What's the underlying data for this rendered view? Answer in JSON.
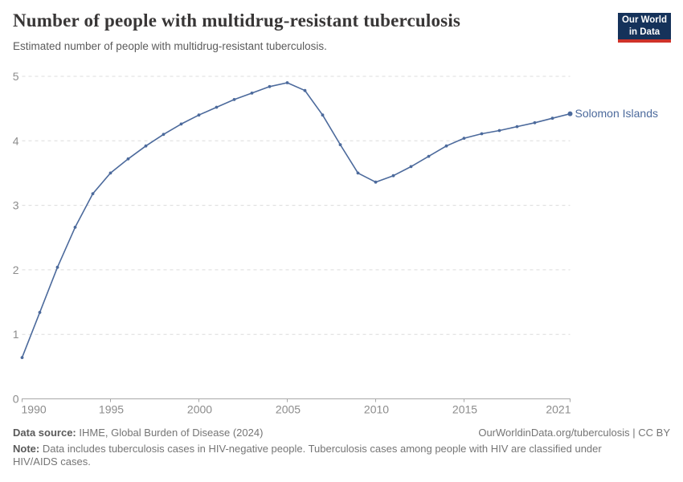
{
  "header": {
    "logo": {
      "line1": "Our World",
      "line2": "in Data",
      "bg_color": "#15325a",
      "bar_color": "#cf3229"
    }
  },
  "chart_data": {
    "type": "line",
    "title": "Number of people with multidrug-resistant tuberculosis",
    "subtitle": "Estimated number of people with multidrug-resistant tuberculosis.",
    "xlabel": "",
    "ylabel": "",
    "xlim": [
      1990,
      2021
    ],
    "ylim": [
      0,
      5
    ],
    "x_ticks": [
      1990,
      1995,
      2000,
      2005,
      2010,
      2015,
      2021
    ],
    "y_ticks": [
      0,
      1,
      2,
      3,
      4,
      5
    ],
    "grid": "horizontal-dashed",
    "legend_position": "label-at-line-end",
    "colors": {
      "line": "#4c6a9c",
      "gridline": "#dcdcdc",
      "axis": "#a8a8a8",
      "tick_label": "#8c8c8c"
    },
    "series": [
      {
        "name": "Solomon Islands",
        "color": "#4c6a9c",
        "x": [
          1990,
          1991,
          1992,
          1993,
          1994,
          1995,
          1996,
          1997,
          1998,
          1999,
          2000,
          2001,
          2002,
          2003,
          2004,
          2005,
          2006,
          2007,
          2008,
          2009,
          2010,
          2011,
          2012,
          2013,
          2014,
          2015,
          2016,
          2017,
          2018,
          2019,
          2020,
          2021
        ],
        "values": [
          0.64,
          1.34,
          2.04,
          2.66,
          3.18,
          3.5,
          3.72,
          3.92,
          4.1,
          4.26,
          4.4,
          4.52,
          4.64,
          4.74,
          4.84,
          4.9,
          4.78,
          4.4,
          3.94,
          3.5,
          3.36,
          3.46,
          3.6,
          3.76,
          3.92,
          4.04,
          4.11,
          4.16,
          4.22,
          4.28,
          4.35,
          4.42
        ]
      }
    ]
  },
  "footer": {
    "source_label": "Data source:",
    "source_text": " IHME, Global Burden of Disease (2024)",
    "link_text": "OurWorldinData.org/tuberculosis | CC BY",
    "note_label": "Note:",
    "note_text": " Data includes tuberculosis cases in HIV-negative people. Tuberculosis cases among people with HIV are classified under HIV/AIDS cases."
  }
}
